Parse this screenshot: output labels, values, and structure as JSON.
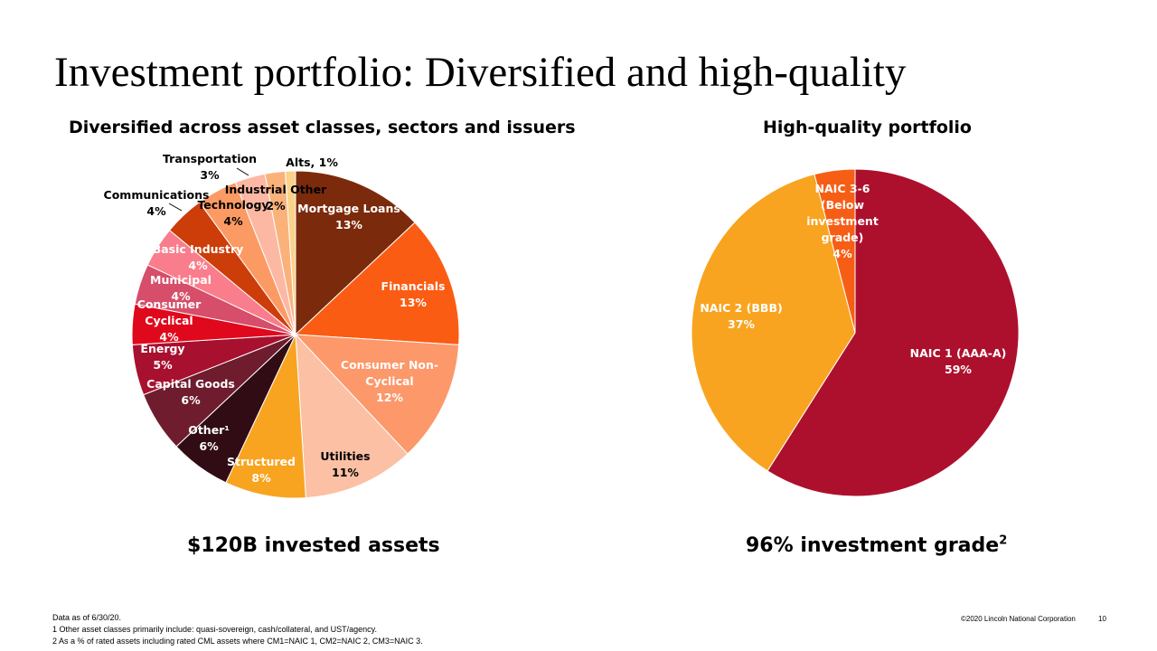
{
  "title": "Investment portfolio: Diversified and high-quality",
  "left_subtitle": "Diversified across asset classes, sectors and issuers",
  "right_subtitle": "High-quality portfolio",
  "left_stat": "$120B invested assets",
  "right_stat": "96% investment grade",
  "right_stat_sup": "2",
  "footnotes": [
    "Data as of 6/30/20.",
    "1  Other asset classes primarily include: quasi-sovereign, cash/collateral, and UST/agency.",
    "2  As a % of rated assets including rated CML assets where CM1=NAIC 1, CM2=NAIC 2, CM3=NAIC 3."
  ],
  "copyright": "©2020 Lincoln National Corporation",
  "page_number": "10",
  "chart_data": [
    {
      "type": "pie",
      "title": "Diversified across asset classes, sectors and issuers",
      "start_angle_deg": 0,
      "direction": "clockwise",
      "slices": [
        {
          "label": "Mortgage Loans",
          "value": 13,
          "display": "13%",
          "color": "#7b2a0c",
          "text_color": "#ffffff"
        },
        {
          "label": "Financials",
          "value": 13,
          "display": "13%",
          "color": "#fb5c13",
          "text_color": "#ffffff"
        },
        {
          "label": "Consumer Non-Cyclical",
          "value": 12,
          "display": "12%",
          "color": "#fc986a",
          "text_color": "#ffffff"
        },
        {
          "label": "Utilities",
          "value": 11,
          "display": "11%",
          "color": "#fcc0a5",
          "text_color": "#000000"
        },
        {
          "label": "Structured",
          "value": 8,
          "display": "8%",
          "color": "#f8a420",
          "text_color": "#ffffff"
        },
        {
          "label": "Other¹",
          "value": 6,
          "display": "6%",
          "color": "#320c14",
          "text_color": "#ffffff"
        },
        {
          "label": "Capital Goods",
          "value": 6,
          "display": "6%",
          "color": "#6e1c2e",
          "text_color": "#ffffff"
        },
        {
          "label": "Energy",
          "value": 5,
          "display": "5%",
          "color": "#a8102f",
          "text_color": "#ffffff"
        },
        {
          "label": "Consumer Cyclical",
          "value": 4,
          "display": "4%",
          "color": "#e0081c",
          "text_color": "#ffffff"
        },
        {
          "label": "Municipal",
          "value": 4,
          "display": "4%",
          "color": "#d64e6a",
          "text_color": "#ffffff"
        },
        {
          "label": "Basic Industry",
          "value": 4,
          "display": "4%",
          "color": "#f97d8c",
          "text_color": "#ffffff"
        },
        {
          "label": "Communications",
          "value": 4,
          "display": "4%",
          "color": "#cc3d0a",
          "text_color": "#000000"
        },
        {
          "label": "Technology",
          "value": 4,
          "display": "4%",
          "color": "#fc9a63",
          "text_color": "#000000"
        },
        {
          "label": "Transportation",
          "value": 3,
          "display": "3%",
          "color": "#fcb8a3",
          "text_color": "#000000"
        },
        {
          "label": "Industrial Other",
          "value": 2,
          "display": "2%",
          "color": "#fbb27a",
          "text_color": "#000000"
        },
        {
          "label": "Alts",
          "value": 1,
          "display": "1%",
          "color": "#fbd28a",
          "text_color": "#000000"
        }
      ]
    },
    {
      "type": "pie",
      "title": "High-quality portfolio",
      "start_angle_deg": 0,
      "direction": "clockwise",
      "slices": [
        {
          "label": "NAIC 1 (AAA-A)",
          "value": 59,
          "display": "59%",
          "color": "#ad102d",
          "text_color": "#ffffff"
        },
        {
          "label": "NAIC 2 (BBB)",
          "value": 37,
          "display": "37%",
          "color": "#f8a420",
          "text_color": "#ffffff"
        },
        {
          "label": "NAIC 3-6 (Below investment grade)",
          "value": 4,
          "display": "4%",
          "color": "#f75e15",
          "text_color": "#ffffff"
        }
      ]
    }
  ]
}
